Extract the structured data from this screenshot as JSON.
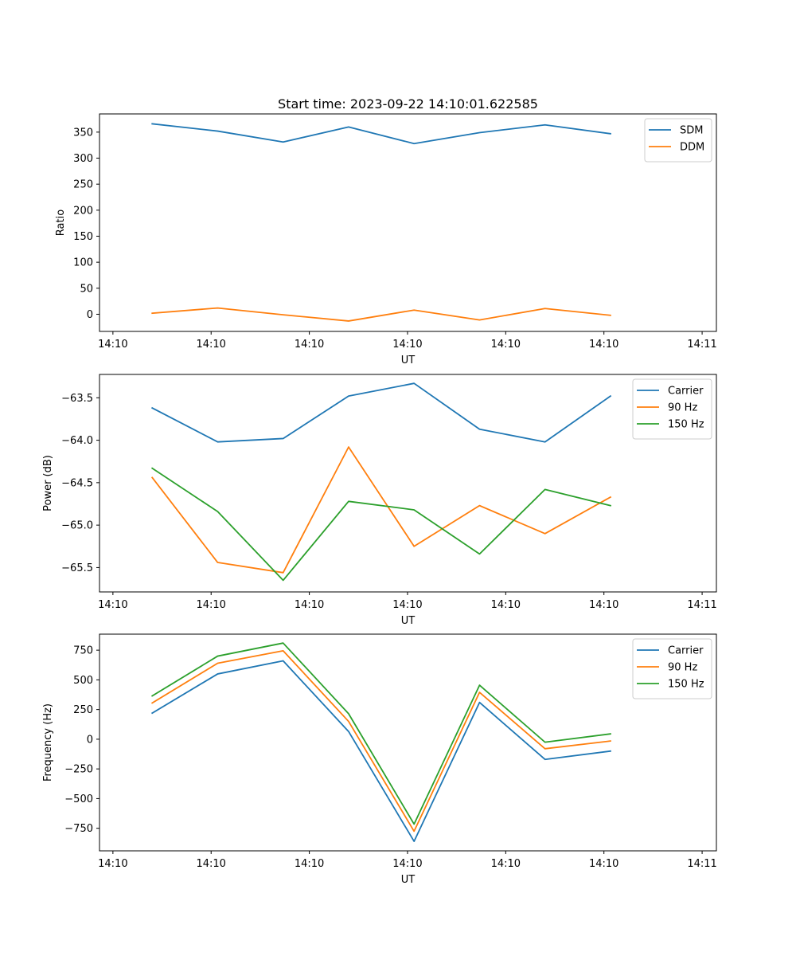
{
  "chart_data": [
    {
      "type": "line",
      "title": "Start time: 2023-09-22 14:10:01.622585",
      "xlabel": "UT",
      "ylabel": "Ratio",
      "x": [
        1,
        2,
        3,
        4,
        5,
        6,
        7,
        8
      ],
      "xlim": [
        0.195,
        9.618
      ],
      "x_ticks": [
        0.4,
        1.9,
        3.4,
        4.9,
        6.4,
        7.9,
        9.4
      ],
      "x_tick_labels": [
        "14:10",
        "14:10",
        "14:10",
        "14:10",
        "14:10",
        "14:10",
        "14:11"
      ],
      "ylim": [
        -33,
        385
      ],
      "y_ticks": [
        0,
        50,
        100,
        150,
        200,
        250,
        300,
        350
      ],
      "y_tick_labels": [
        "0",
        "50",
        "100",
        "150",
        "200",
        "250",
        "300",
        "350"
      ],
      "legend": "top-right",
      "series": [
        {
          "name": "SDM",
          "color": "#1f77b4",
          "values": [
            366,
            352,
            331,
            360,
            328,
            349,
            364,
            347
          ]
        },
        {
          "name": "DDM",
          "color": "#ff7f0e",
          "values": [
            2,
            12,
            -1,
            -13,
            8,
            -11,
            11,
            -2
          ]
        }
      ]
    },
    {
      "type": "line",
      "title": "",
      "xlabel": "UT",
      "ylabel": "Power (dB)",
      "x": [
        1,
        2,
        3,
        4,
        5,
        6,
        7,
        8
      ],
      "xlim": [
        0.195,
        9.618
      ],
      "x_ticks": [
        0.4,
        1.9,
        3.4,
        4.9,
        6.4,
        7.9,
        9.4
      ],
      "x_tick_labels": [
        "14:10",
        "14:10",
        "14:10",
        "14:10",
        "14:10",
        "14:10",
        "14:11"
      ],
      "ylim": [
        -65.787,
        -63.225
      ],
      "y_ticks": [
        -65.5,
        -65.0,
        -64.5,
        -64.0,
        -63.5
      ],
      "y_tick_labels": [
        "−65.5",
        "−65.0",
        "−64.5",
        "−64.0",
        "−63.5"
      ],
      "legend": "top-right",
      "series": [
        {
          "name": "Carrier",
          "color": "#1f77b4",
          "values": [
            -63.62,
            -64.02,
            -63.98,
            -63.48,
            -63.33,
            -63.87,
            -64.02,
            -63.48
          ]
        },
        {
          "name": "90 Hz",
          "color": "#ff7f0e",
          "values": [
            -64.44,
            -65.44,
            -65.56,
            -64.08,
            -65.25,
            -64.77,
            -65.1,
            -64.67
          ]
        },
        {
          "name": "150 Hz",
          "color": "#2ca02c",
          "values": [
            -64.33,
            -64.84,
            -65.65,
            -64.72,
            -64.82,
            -65.34,
            -64.58,
            -64.77
          ]
        }
      ]
    },
    {
      "type": "line",
      "title": "",
      "xlabel": "UT",
      "ylabel": "Frequency (Hz)",
      "x": [
        1,
        2,
        3,
        4,
        5,
        6,
        7,
        8
      ],
      "xlim": [
        0.195,
        9.618
      ],
      "x_ticks": [
        0.4,
        1.9,
        3.4,
        4.9,
        6.4,
        7.9,
        9.4
      ],
      "x_tick_labels": [
        "14:10",
        "14:10",
        "14:10",
        "14:10",
        "14:10",
        "14:10",
        "14:11"
      ],
      "ylim": [
        -940,
        885
      ],
      "y_ticks": [
        -750,
        -500,
        -250,
        0,
        250,
        500,
        750
      ],
      "y_tick_labels": [
        "−750",
        "−500",
        "−250",
        "0",
        "250",
        "500",
        "750"
      ],
      "legend": "top-right",
      "series": [
        {
          "name": "Carrier",
          "color": "#1f77b4",
          "values": [
            220,
            550,
            660,
            65,
            -860,
            310,
            -170,
            -100
          ]
        },
        {
          "name": "90 Hz",
          "color": "#ff7f0e",
          "values": [
            305,
            640,
            745,
            150,
            -775,
            395,
            -80,
            -15
          ]
        },
        {
          "name": "150 Hz",
          "color": "#2ca02c",
          "values": [
            365,
            700,
            810,
            215,
            -715,
            455,
            -25,
            45
          ]
        }
      ]
    }
  ]
}
